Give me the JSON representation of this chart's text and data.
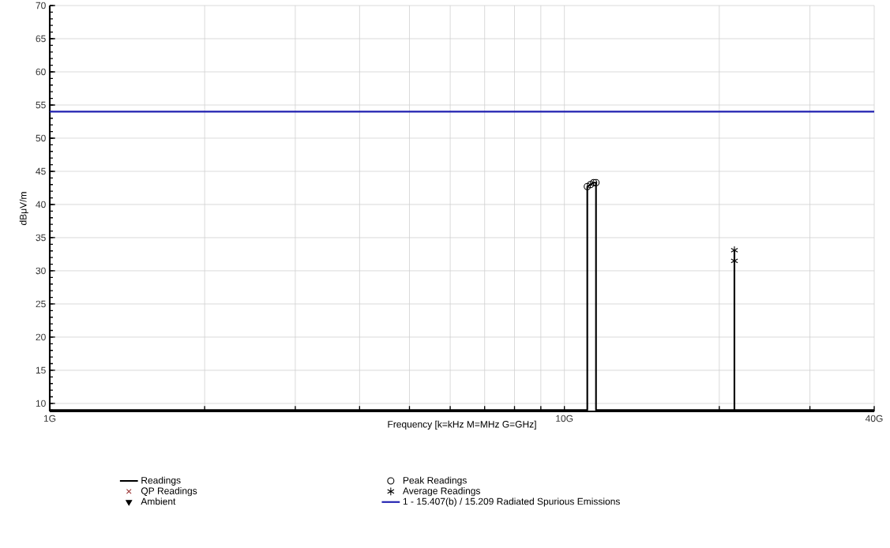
{
  "chart_data": {
    "type": "line",
    "xlabel": "Frequency [k=kHz M=MHz G=GHz]",
    "ylabel": "dBμV/m",
    "log": "x",
    "xlim": [
      1,
      40
    ],
    "ylim": [
      8.8,
      70
    ],
    "xticks": [
      {
        "value": 1,
        "label": "1G"
      },
      {
        "value": 2,
        "label": null
      },
      {
        "value": 3,
        "label": null
      },
      {
        "value": 4,
        "label": null
      },
      {
        "value": 5,
        "label": null
      },
      {
        "value": 6,
        "label": null
      },
      {
        "value": 7,
        "label": null
      },
      {
        "value": 8,
        "label": null
      },
      {
        "value": 9,
        "label": null
      },
      {
        "value": 10,
        "label": "10G"
      },
      {
        "value": 20,
        "label": null
      },
      {
        "value": 30,
        "label": null
      },
      {
        "value": 40,
        "label": "40G"
      }
    ],
    "yticks": [
      10,
      15,
      20,
      25,
      30,
      35,
      40,
      45,
      50,
      55,
      60,
      65,
      70
    ],
    "grid": true,
    "legend": "bottom",
    "series": [
      {
        "name": "Readings",
        "color": "#000000",
        "marker": "none",
        "x": [
          1,
          11.08,
          11.08,
          11.24,
          11.4,
          11.52,
          11.52,
          21.4,
          21.4,
          21.4,
          40
        ],
        "values": [
          9,
          9,
          42.7,
          43.0,
          43.3,
          43.3,
          9,
          9,
          33.1,
          9,
          9
        ]
      },
      {
        "name": "Peak Readings",
        "type": "scatter",
        "color": "#000000",
        "marker": "circle",
        "x": [
          11.08,
          11.24,
          11.4,
          11.52
        ],
        "values": [
          42.7,
          43.0,
          43.3,
          43.3
        ]
      },
      {
        "name": "QP Readings",
        "type": "scatter",
        "color": "#993333",
        "marker": "cross"
      },
      {
        "name": "Average Readings",
        "type": "scatter",
        "color": "#000000",
        "x": [
          21.4,
          21.4
        ],
        "values": [
          33.1,
          31.5
        ]
      },
      {
        "name": "Ambient",
        "type": "scatter",
        "color": "#000000",
        "marker": "triangle"
      }
    ],
    "ref_lines": [
      {
        "axis": "y",
        "value": 54,
        "label": "1 - 15.407(b) / 15.209 Radiated Spurious Emissions",
        "color": "#1f1fb0",
        "line_style": "solid"
      }
    ]
  }
}
